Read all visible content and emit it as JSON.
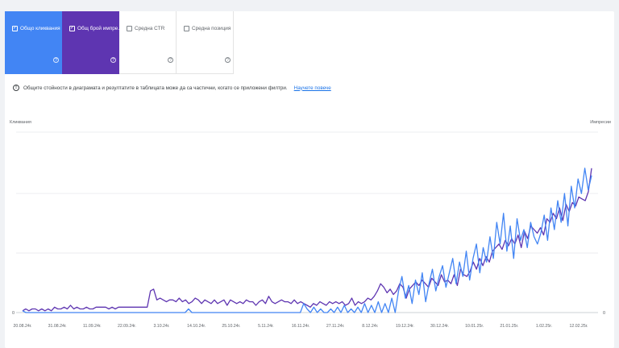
{
  "metrics": [
    {
      "label": "Общо кликвания",
      "checked": true,
      "color": "#4285f4"
    },
    {
      "label": "Общ брой импре…",
      "checked": true,
      "color": "#5e35b1"
    },
    {
      "label": "Средна CTR",
      "checked": false,
      "color": "#ffffff"
    },
    {
      "label": "Средна позиция",
      "checked": false,
      "color": "#ffffff"
    }
  ],
  "help_glyph": "?",
  "notice": {
    "text": "Общите стойности в диаграмата и резултатите в таблицата може да са частични, когато се приложени филтри.",
    "link": "Научете повече"
  },
  "chart_data": {
    "type": "line",
    "ylabel_left": "Кликвания",
    "ylabel_right": "Импресии",
    "left_ticks": [
      "0"
    ],
    "right_ticks": [
      "0"
    ],
    "x_tick_labels": [
      "20.08.24г.",
      "31.08.24г.",
      "11.09.24г.",
      "22.09.24г.",
      "3.10.24г.",
      "14.10.24г.",
      "25.10.24г.",
      "5.11.24г.",
      "16.11.24г.",
      "27.11.24г.",
      "8.12.24г.",
      "19.12.24г.",
      "30.12.24г.",
      "10.01.25г.",
      "21.01.25г.",
      "1.02.25г.",
      "12.02.25г."
    ],
    "grid": true,
    "y_range_normalized": [
      0,
      1
    ],
    "series": [
      {
        "color": "#5e35b1",
        "values": [
          0.01,
          0.02,
          0.01,
          0.02,
          0.02,
          0.01,
          0.02,
          0.01,
          0.02,
          0.01,
          0.03,
          0.02,
          0.02,
          0.03,
          0.02,
          0.04,
          0.02,
          0.03,
          0.02,
          0.02,
          0.03,
          0.02,
          0.02,
          0.03,
          0.03,
          0.03,
          0.03,
          0.02,
          0.03,
          0.02,
          0.03,
          0.03,
          0.03,
          0.03,
          0.03,
          0.03,
          0.03,
          0.03,
          0.03,
          0.03,
          0.12,
          0.13,
          0.07,
          0.08,
          0.07,
          0.06,
          0.07,
          0.07,
          0.06,
          0.08,
          0.06,
          0.07,
          0.05,
          0.06,
          0.08,
          0.07,
          0.05,
          0.07,
          0.06,
          0.05,
          0.07,
          0.05,
          0.06,
          0.07,
          0.04,
          0.07,
          0.06,
          0.05,
          0.06,
          0.05,
          0.07,
          0.06,
          0.06,
          0.04,
          0.06,
          0.07,
          0.05,
          0.09,
          0.06,
          0.05,
          0.06,
          0.07,
          0.06,
          0.06,
          0.05,
          0.07,
          0.05,
          0.06,
          0.05,
          0.04,
          0.03,
          0.05,
          0.04,
          0.06,
          0.05,
          0.04,
          0.06,
          0.05,
          0.06,
          0.05,
          0.06,
          0.04,
          0.05,
          0.08,
          0.04,
          0.06,
          0.05,
          0.06,
          0.08,
          0.07,
          0.09,
          0.12,
          0.16,
          0.14,
          0.11,
          0.13,
          0.1,
          0.12,
          0.16,
          0.14,
          0.08,
          0.13,
          0.15,
          0.17,
          0.15,
          0.18,
          0.16,
          0.14,
          0.19,
          0.17,
          0.15,
          0.21,
          0.17,
          0.18,
          0.16,
          0.21,
          0.15,
          0.24,
          0.21,
          0.2,
          0.23,
          0.28,
          0.24,
          0.3,
          0.26,
          0.31,
          0.28,
          0.34,
          0.36,
          0.38,
          0.35,
          0.4,
          0.37,
          0.41,
          0.38,
          0.43,
          0.36,
          0.45,
          0.41,
          0.48,
          0.46,
          0.44,
          0.47,
          0.43,
          0.52,
          0.5,
          0.55,
          0.52,
          0.58,
          0.51,
          0.6,
          0.56,
          0.61,
          0.59,
          0.64,
          0.63,
          0.62,
          0.67,
          0.8
        ]
      },
      {
        "color": "#4285f4",
        "values": [
          0.01,
          0.0,
          0.0,
          0.0,
          0.0,
          0.0,
          0.0,
          0.0,
          0.0,
          0.0,
          0.0,
          0.0,
          0.0,
          0.0,
          0.0,
          0.0,
          0.0,
          0.0,
          0.0,
          0.0,
          0.0,
          0.0,
          0.0,
          0.0,
          0.0,
          0.0,
          0.0,
          0.0,
          0.0,
          0.0,
          0.0,
          0.0,
          0.0,
          0.0,
          0.0,
          0.0,
          0.0,
          0.0,
          0.0,
          0.0,
          0.0,
          0.0,
          0.0,
          0.0,
          0.0,
          0.0,
          0.0,
          0.0,
          0.0,
          0.02,
          0.0,
          0.0,
          0.0,
          0.0,
          0.0,
          0.0,
          0.0,
          0.0,
          0.0,
          0.0,
          0.0,
          0.0,
          0.0,
          0.0,
          0.0,
          0.0,
          0.0,
          0.0,
          0.0,
          0.0,
          0.0,
          0.0,
          0.0,
          0.0,
          0.0,
          0.0,
          0.0,
          0.0,
          0.0,
          0.0,
          0.0,
          0.0,
          0.0,
          0.05,
          0.02,
          0.0,
          0.03,
          0.0,
          0.02,
          0.0,
          0.0,
          0.02,
          0.0,
          0.03,
          0.0,
          0.04,
          0.0,
          0.02,
          0.0,
          0.03,
          0.0,
          0.05,
          0.0,
          0.04,
          0.0,
          0.06,
          0.0,
          0.05,
          0.0,
          0.08,
          0.0,
          0.12,
          0.2,
          0.08,
          0.15,
          0.05,
          0.18,
          0.1,
          0.22,
          0.06,
          0.16,
          0.24,
          0.12,
          0.2,
          0.26,
          0.14,
          0.22,
          0.3,
          0.16,
          0.28,
          0.2,
          0.34,
          0.18,
          0.3,
          0.38,
          0.22,
          0.36,
          0.28,
          0.42,
          0.3,
          0.5,
          0.38,
          0.55,
          0.34,
          0.48,
          0.3,
          0.52,
          0.4,
          0.46,
          0.36,
          0.5,
          0.42,
          0.38,
          0.44,
          0.54,
          0.4,
          0.58,
          0.46,
          0.62,
          0.5,
          0.66,
          0.48,
          0.7,
          0.58,
          0.74,
          0.66,
          0.8,
          0.68,
          0.76
        ]
      }
    ]
  }
}
